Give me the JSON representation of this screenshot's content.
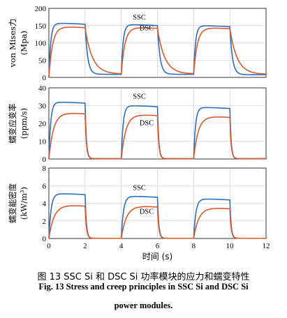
{
  "chart_data": [
    {
      "type": "line",
      "ylabel": "von Mises力 (Mpa)",
      "ylim": [
        0,
        200
      ],
      "yticks": [
        0,
        50,
        100,
        150,
        200
      ],
      "xlim": [
        0,
        12
      ],
      "grid": true,
      "series": [
        {
          "name": "SSC",
          "color": "#2a6fbf",
          "tau_rise": 0.1,
          "tau_fall": 0.14,
          "x": [
            0,
            2,
            4,
            6,
            8,
            10
          ],
          "high": [
            0,
            157,
            156,
            153,
            152,
            150
          ],
          "low": [
            0,
            8,
            9,
            9,
            9,
            8
          ]
        },
        {
          "name": "DSC",
          "color": "#d9592a",
          "tau_rise": 0.2,
          "tau_fall": 0.4,
          "x": [
            0,
            2,
            4,
            6,
            8,
            10
          ],
          "high": [
            0,
            147,
            146,
            145,
            145,
            144
          ],
          "low": [
            0,
            10,
            10,
            10,
            10,
            9
          ]
        }
      ],
      "labels": [
        {
          "text": "SSC",
          "x": 5.0,
          "y": 168
        },
        {
          "text": "DSC",
          "x": 5.4,
          "y": 136
        }
      ]
    },
    {
      "type": "line",
      "ylabel": "蠕变应变率 (ppm/s)",
      "ylim": [
        0,
        40
      ],
      "yticks": [
        0,
        10,
        20,
        30,
        40
      ],
      "xlim": [
        0,
        12
      ],
      "grid": true,
      "series": [
        {
          "name": "SSC",
          "color": "#2a6fbf",
          "tau_rise": 0.1,
          "tau_fall": 0.07,
          "x": [
            0,
            2,
            4,
            6,
            8,
            10
          ],
          "high": [
            0,
            32,
            31,
            30,
            29.5,
            29
          ],
          "low": [
            0,
            0.2,
            0.2,
            0.2,
            0.2,
            0.2
          ]
        },
        {
          "name": "DSC",
          "color": "#d9592a",
          "tau_rise": 0.25,
          "tau_fall": 0.07,
          "x": [
            0,
            2,
            4,
            6,
            8,
            10
          ],
          "high": [
            0,
            26,
            26,
            25,
            24.5,
            24
          ],
          "low": [
            0,
            0.2,
            0.2,
            0.2,
            0.2,
            0.2
          ]
        }
      ],
      "labels": [
        {
          "text": "SSC",
          "x": 5.0,
          "y": 34
        },
        {
          "text": "DSC",
          "x": 5.4,
          "y": 19
        }
      ]
    },
    {
      "type": "line",
      "ylabel": "蠕变能密度 (kW/m³)",
      "ylim": [
        0,
        8
      ],
      "yticks": [
        0,
        2,
        4,
        6,
        8
      ],
      "xlim": [
        0,
        12
      ],
      "xticks": [
        0,
        2,
        4,
        6,
        8,
        10,
        12
      ],
      "xlabel": "时间 (s)",
      "grid": true,
      "series": [
        {
          "name": "SSC",
          "color": "#2a6fbf",
          "tau_rise": 0.12,
          "tau_fall": 0.07,
          "x": [
            0,
            2,
            4,
            6,
            8,
            10
          ],
          "high": [
            0,
            5.1,
            4.9,
            4.8,
            4.6,
            4.5
          ],
          "low": [
            0,
            0.02,
            0.02,
            0.02,
            0.02,
            0.02
          ]
        },
        {
          "name": "DSC",
          "color": "#d9592a",
          "tau_rise": 0.28,
          "tau_fall": 0.07,
          "x": [
            0,
            2,
            4,
            6,
            8,
            10
          ],
          "high": [
            0,
            3.8,
            3.8,
            3.7,
            3.6,
            3.5
          ],
          "low": [
            0,
            0.02,
            0.02,
            0.02,
            0.02,
            0.02
          ]
        }
      ],
      "labels": [
        {
          "text": "SSC",
          "x": 5.0,
          "y": 5.5
        },
        {
          "text": "DSC",
          "x": 5.4,
          "y": 2.8
        }
      ]
    }
  ],
  "caption": {
    "cn": "图 13   SSC Si 和 DSC Si 功率模块的应力和蠕变特性",
    "en_line1": "Fig. 13    Stress and creep principles in SSC Si and DSC Si",
    "en_line2": "power modules."
  }
}
